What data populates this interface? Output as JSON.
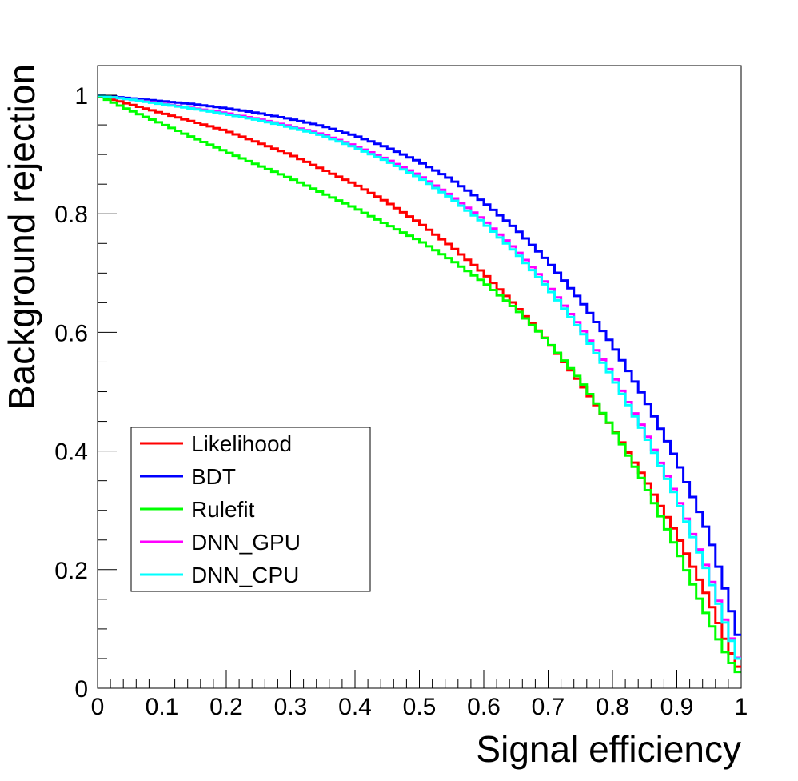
{
  "chart_data": {
    "type": "line",
    "title": "",
    "xlabel": "Signal efficiency",
    "ylabel": "Background rejection",
    "xlim": [
      0,
      1
    ],
    "ylim": [
      0,
      1.05
    ],
    "grid": false,
    "legend_position": "bottom-left",
    "x_major_ticks": [
      0,
      0.1,
      0.2,
      0.3,
      0.4,
      0.5,
      0.6,
      0.7,
      0.8,
      0.9,
      1
    ],
    "x_tick_labels": [
      "0",
      "0.1",
      "0.2",
      "0.3",
      "0.4",
      "0.5",
      "0.6",
      "0.7",
      "0.8",
      "0.9",
      "1"
    ],
    "y_major_ticks": [
      0,
      0.2,
      0.4,
      0.6,
      0.8,
      1
    ],
    "y_tick_labels": [
      "0",
      "0.2",
      "0.4",
      "0.6",
      "0.8",
      "1"
    ],
    "x": [
      0,
      0.05,
      0.1,
      0.15,
      0.2,
      0.25,
      0.3,
      0.35,
      0.4,
      0.45,
      0.5,
      0.55,
      0.6,
      0.65,
      0.7,
      0.75,
      0.8,
      0.85,
      0.9,
      0.95,
      0.98,
      1.0
    ],
    "series": [
      {
        "name": "Likelihood",
        "color": "#ff0000",
        "values": [
          1.0,
          0.985,
          0.97,
          0.955,
          0.94,
          0.92,
          0.9,
          0.875,
          0.85,
          0.82,
          0.785,
          0.745,
          0.7,
          0.645,
          0.585,
          0.515,
          0.44,
          0.355,
          0.26,
          0.15,
          0.07,
          0.025
        ]
      },
      {
        "name": "BDT",
        "color": "#0000ff",
        "values": [
          1.0,
          0.995,
          0.99,
          0.985,
          0.978,
          0.97,
          0.96,
          0.948,
          0.932,
          0.912,
          0.888,
          0.858,
          0.82,
          0.775,
          0.72,
          0.655,
          0.58,
          0.49,
          0.385,
          0.26,
          0.15,
          0.07
        ]
      },
      {
        "name": "Rulefit",
        "color": "#00ff00",
        "values": [
          1.0,
          0.975,
          0.952,
          0.928,
          0.905,
          0.882,
          0.86,
          0.835,
          0.81,
          0.782,
          0.755,
          0.722,
          0.685,
          0.64,
          0.585,
          0.52,
          0.44,
          0.345,
          0.235,
          0.115,
          0.05,
          0.02
        ]
      },
      {
        "name": "DNN_GPU",
        "color": "#ff00ff",
        "values": [
          1.0,
          0.993,
          0.986,
          0.978,
          0.97,
          0.96,
          0.948,
          0.934,
          0.915,
          0.892,
          0.865,
          0.83,
          0.79,
          0.74,
          0.68,
          0.61,
          0.53,
          0.435,
          0.325,
          0.195,
          0.1,
          0.035
        ]
      },
      {
        "name": "DNN_CPU",
        "color": "#00ffff",
        "values": [
          1.0,
          0.993,
          0.985,
          0.977,
          0.968,
          0.958,
          0.946,
          0.932,
          0.912,
          0.889,
          0.861,
          0.826,
          0.785,
          0.735,
          0.675,
          0.605,
          0.525,
          0.43,
          0.32,
          0.19,
          0.095,
          0.035
        ]
      }
    ]
  }
}
